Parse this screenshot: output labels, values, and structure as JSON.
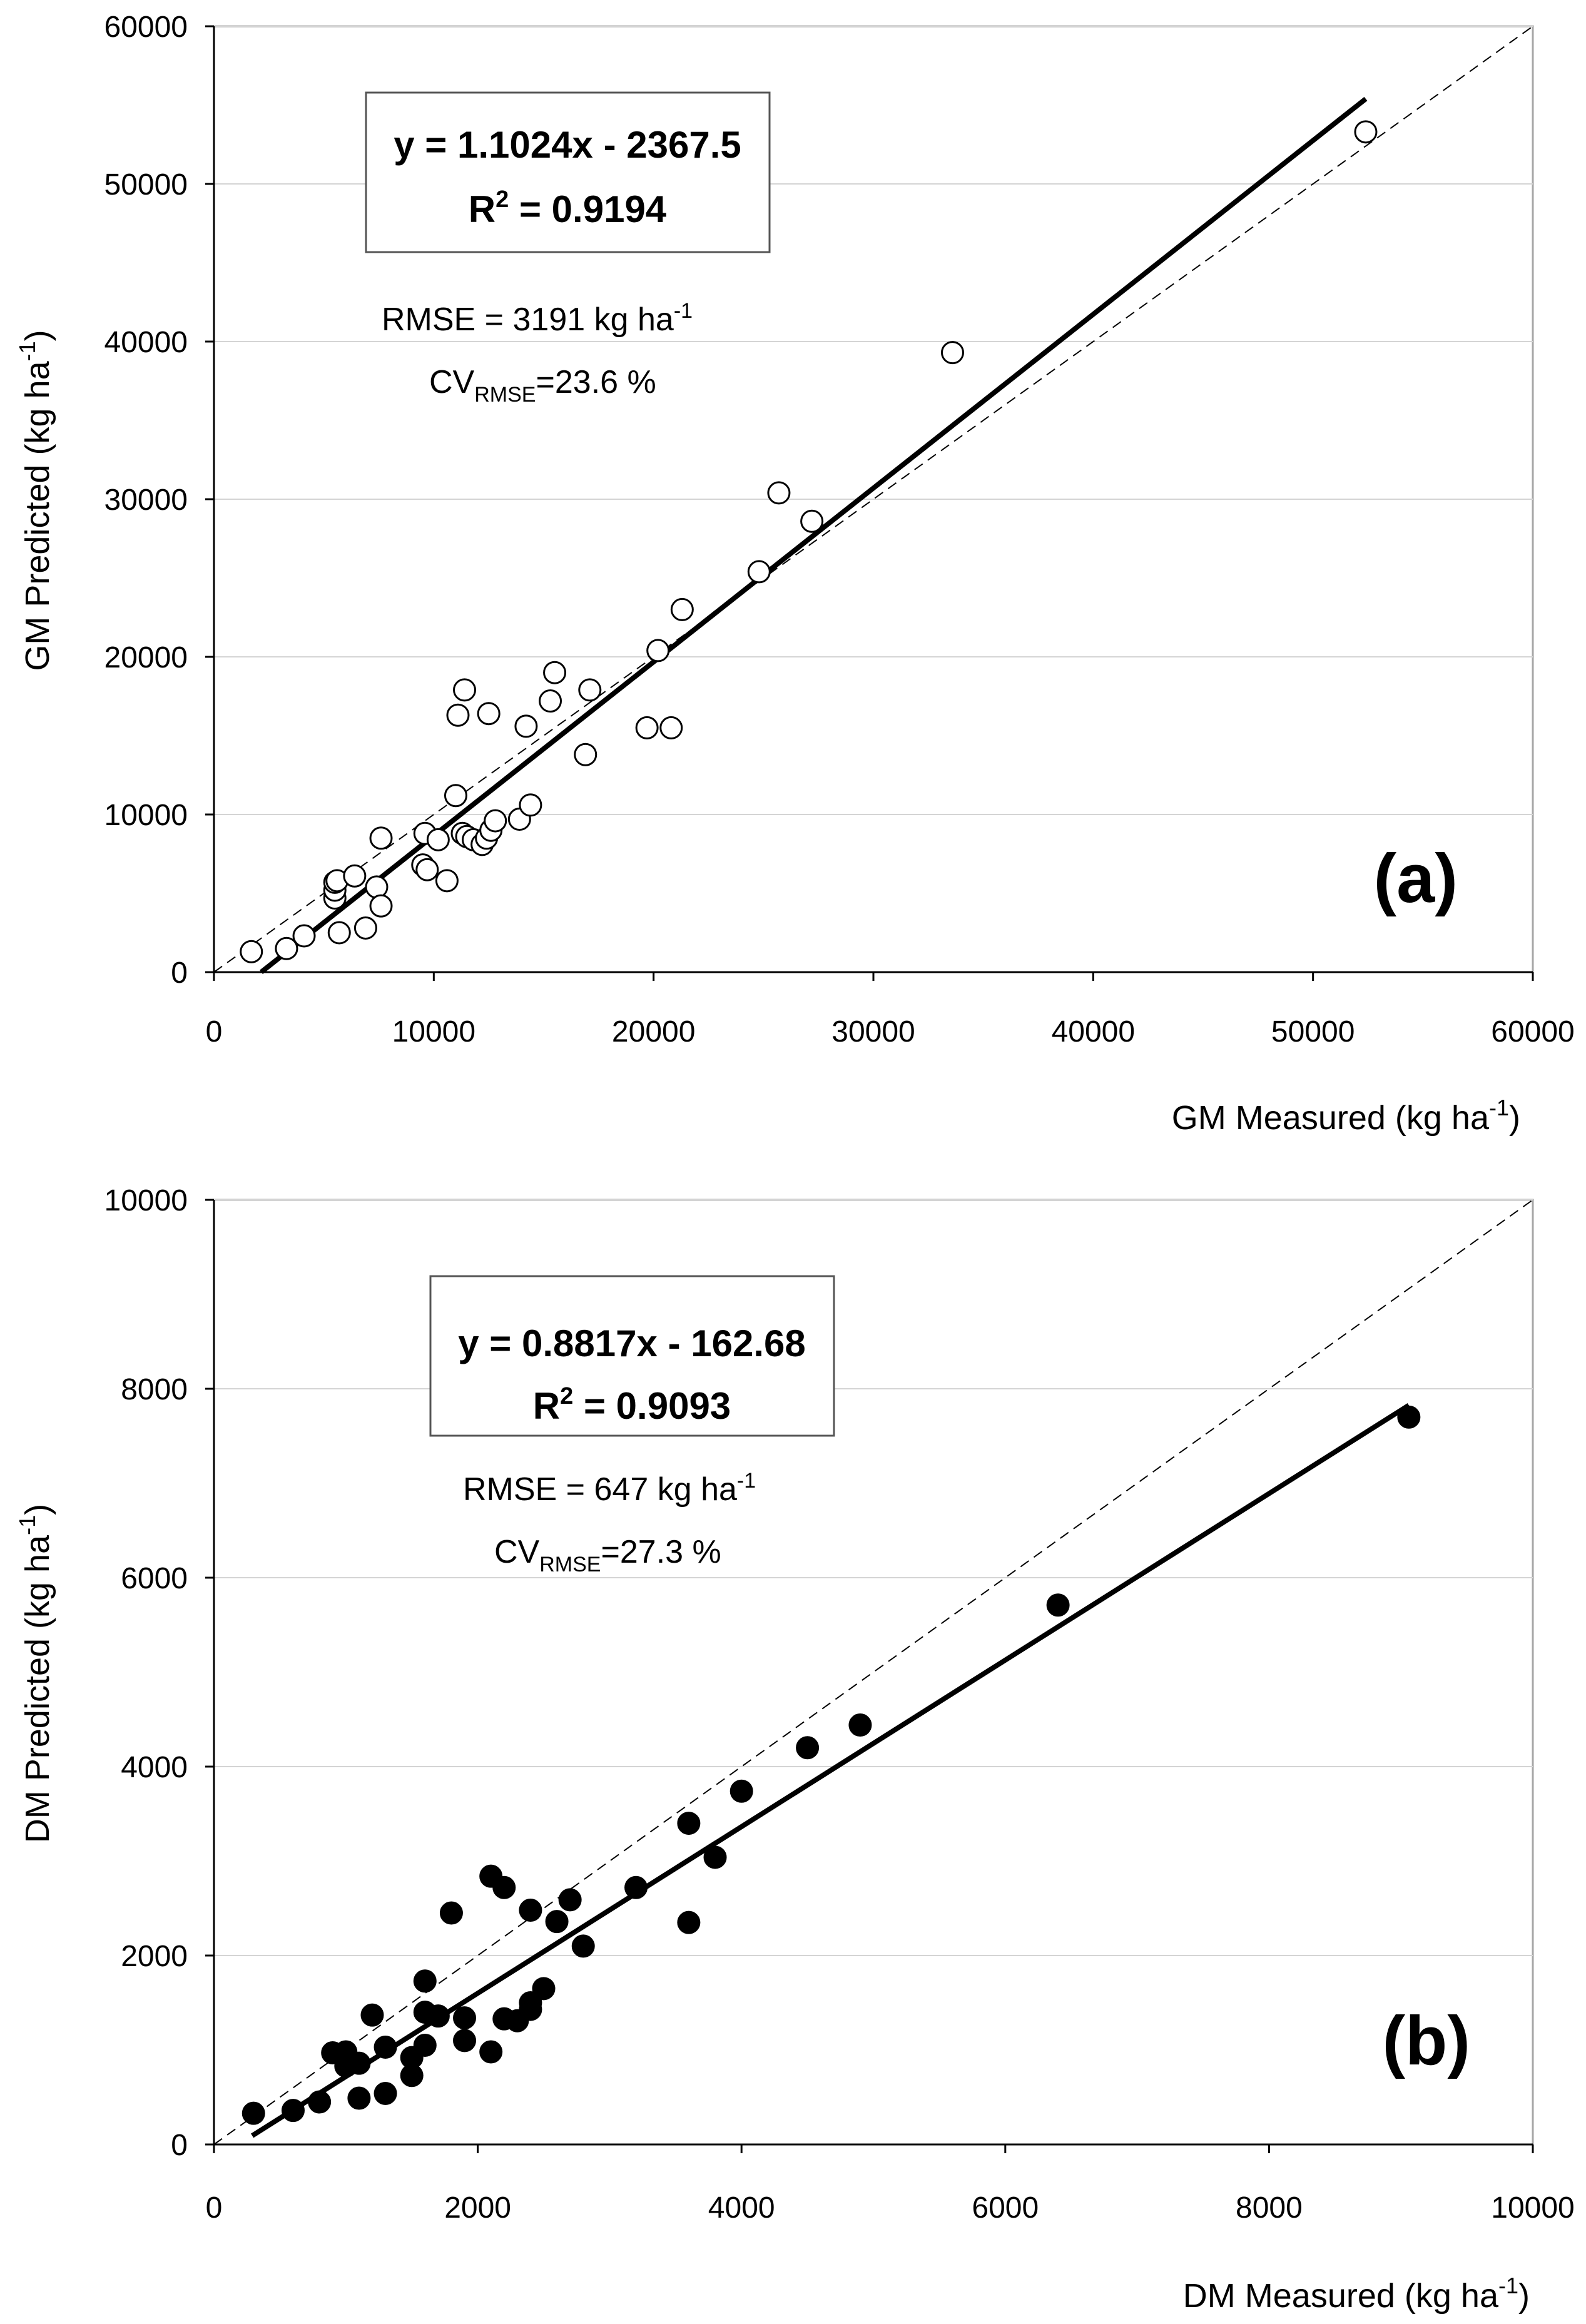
{
  "chart_data": [
    {
      "type": "scatter",
      "panel_label": "(a)",
      "xlabel_main": "GM Measured (kg ha",
      "xlabel_sup": "-1",
      "xlabel_end": ")",
      "ylabel_main": "GM Predicted (kg ha",
      "ylabel_sup": "-1",
      "ylabel_end": ")",
      "xlim": [
        0,
        60000
      ],
      "ylim": [
        0,
        60000
      ],
      "xticks": [
        "0",
        "10000",
        "20000",
        "30000",
        "40000",
        "50000",
        "60000"
      ],
      "yticks": [
        "0",
        "10000",
        "20000",
        "30000",
        "40000",
        "50000",
        "60000"
      ],
      "grid": true,
      "marker": "open-circle",
      "equation": "y = 1.1024x - 2367.5",
      "r2_prefix": "R",
      "r2_sup": "2",
      "r2_value": " = 0.9194",
      "rmse_text": "RMSE = 3191 kg ha",
      "rmse_sup": "-1",
      "cv_prefix": "CV",
      "cv_sub": "RMSE",
      "cv_value": "=23.6 %",
      "fit": {
        "slope": 1.1024,
        "intercept": -2367.5,
        "x_range": [
          2150,
          52400
        ]
      },
      "one_to_one": true,
      "points": [
        [
          1700,
          1300
        ],
        [
          3300,
          1500
        ],
        [
          4100,
          2300
        ],
        [
          5500,
          4700
        ],
        [
          5500,
          5200
        ],
        [
          5500,
          5700
        ],
        [
          5600,
          5800
        ],
        [
          5700,
          2500
        ],
        [
          6400,
          6100
        ],
        [
          6900,
          2800
        ],
        [
          7400,
          5400
        ],
        [
          7600,
          4200
        ],
        [
          7600,
          8500
        ],
        [
          9500,
          6800
        ],
        [
          9600,
          8800
        ],
        [
          9700,
          6500
        ],
        [
          10200,
          8400
        ],
        [
          10600,
          5800
        ],
        [
          11000,
          11200
        ],
        [
          11100,
          16300
        ],
        [
          11300,
          8800
        ],
        [
          11400,
          17900
        ],
        [
          11500,
          8600
        ],
        [
          11800,
          8400
        ],
        [
          12200,
          8100
        ],
        [
          12400,
          8500
        ],
        [
          12500,
          16400
        ],
        [
          12600,
          9000
        ],
        [
          12800,
          9600
        ],
        [
          13900,
          9700
        ],
        [
          14200,
          15600
        ],
        [
          14400,
          10600
        ],
        [
          15300,
          17200
        ],
        [
          15500,
          19000
        ],
        [
          16900,
          13800
        ],
        [
          17100,
          17900
        ],
        [
          19700,
          15500
        ],
        [
          20200,
          20400
        ],
        [
          20800,
          15500
        ],
        [
          21300,
          23000
        ],
        [
          24800,
          25400
        ],
        [
          25700,
          30400
        ],
        [
          27200,
          28600
        ],
        [
          33600,
          39300
        ],
        [
          52400,
          53300
        ]
      ]
    },
    {
      "type": "scatter",
      "panel_label": "(b)",
      "xlabel_main": "DM Measured (kg ha",
      "xlabel_sup": "-1",
      "xlabel_end": ")",
      "ylabel_main": "DM Predicted (kg ha",
      "ylabel_sup": "-1",
      "ylabel_end": ")",
      "xlim": [
        0,
        10000
      ],
      "ylim": [
        0,
        10000
      ],
      "xticks": [
        "0",
        "2000",
        "4000",
        "6000",
        "8000",
        "10000"
      ],
      "yticks": [
        "0",
        "2000",
        "4000",
        "6000",
        "8000",
        "10000"
      ],
      "grid": true,
      "marker": "filled-circle",
      "equation": "y = 0.8817x - 162.68",
      "r2_prefix": "R",
      "r2_sup": "2",
      "r2_value": " = 0.9093",
      "rmse_text": "RMSE = 647 kg ha",
      "rmse_sup": "-1",
      "cv_prefix": "CV",
      "cv_sub": "RMSE",
      "cv_value": "=27.3 %",
      "fit": {
        "slope": 0.8817,
        "intercept": -162.68,
        "x_range": [
          290,
          9060
        ]
      },
      "one_to_one": true,
      "points": [
        [
          300,
          330
        ],
        [
          600,
          360
        ],
        [
          800,
          450
        ],
        [
          900,
          970
        ],
        [
          1000,
          830
        ],
        [
          1000,
          980
        ],
        [
          1100,
          490
        ],
        [
          1100,
          860
        ],
        [
          1200,
          1370
        ],
        [
          1300,
          540
        ],
        [
          1300,
          1030
        ],
        [
          1500,
          730
        ],
        [
          1500,
          920
        ],
        [
          1600,
          1050
        ],
        [
          1600,
          1400
        ],
        [
          1600,
          1730
        ],
        [
          1700,
          1360
        ],
        [
          1800,
          2450
        ],
        [
          1900,
          1100
        ],
        [
          1900,
          1340
        ],
        [
          2100,
          980
        ],
        [
          2100,
          2840
        ],
        [
          2200,
          1330
        ],
        [
          2200,
          2720
        ],
        [
          2300,
          1310
        ],
        [
          2400,
          1430
        ],
        [
          2400,
          1500
        ],
        [
          2400,
          2480
        ],
        [
          2500,
          1650
        ],
        [
          2600,
          2360
        ],
        [
          2700,
          2590
        ],
        [
          2800,
          2100
        ],
        [
          3200,
          2720
        ],
        [
          3600,
          2350
        ],
        [
          3600,
          3400
        ],
        [
          3800,
          3040
        ],
        [
          4000,
          3740
        ],
        [
          4500,
          4200
        ],
        [
          4900,
          4440
        ],
        [
          6400,
          5710
        ],
        [
          9060,
          7700
        ]
      ]
    }
  ]
}
